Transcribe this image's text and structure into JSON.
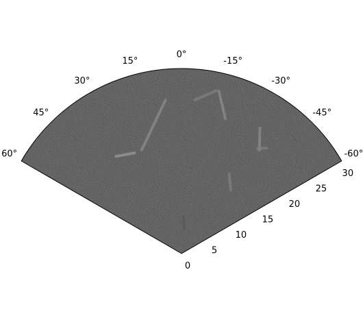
{
  "chart_data": {
    "type": "polar-image",
    "title": "",
    "colormap": "grayscale",
    "background_color": "#2a2a2a",
    "theta_range_deg": [
      -60,
      60
    ],
    "r_range": [
      0,
      30
    ],
    "theta_tick_labels": [
      "60°",
      "45°",
      "30°",
      "15°",
      "0°",
      "-15°",
      "-30°",
      "-45°",
      "-60°"
    ],
    "theta_tick_values": [
      60,
      45,
      30,
      15,
      0,
      -15,
      -30,
      -45,
      -60
    ],
    "r_tick_labels": [
      "0",
      "5",
      "10",
      "15",
      "20",
      "25",
      "30"
    ],
    "r_tick_values": [
      0,
      5,
      10,
      15,
      20,
      25,
      30
    ],
    "grid": false,
    "features": [
      {
        "theta": [
          21,
          6
        ],
        "r": [
          18,
          25
        ],
        "intensity": 0.55
      },
      {
        "theta": [
          -5,
          -12
        ],
        "r": [
          25,
          27
        ],
        "intensity": 0.5
      },
      {
        "theta": [
          34,
          25
        ],
        "r": [
          19,
          18
        ],
        "intensity": 0.6
      },
      {
        "theta": [
          -13,
          -18
        ],
        "r": [
          27,
          23
        ],
        "intensity": 0.55
      },
      {
        "theta": [
          -32,
          -37
        ],
        "r": [
          24,
          21
        ],
        "intensity": 0.55
      },
      {
        "theta": [
          -39,
          -36
        ],
        "r": [
          22,
          21
        ],
        "intensity": 0.5
      },
      {
        "theta": [
          -31,
          -38
        ],
        "r": [
          15,
          13
        ],
        "intensity": 0.5
      },
      {
        "theta": [
          -3,
          -7
        ],
        "r": [
          6,
          4
        ],
        "intensity": 0.35
      }
    ]
  }
}
